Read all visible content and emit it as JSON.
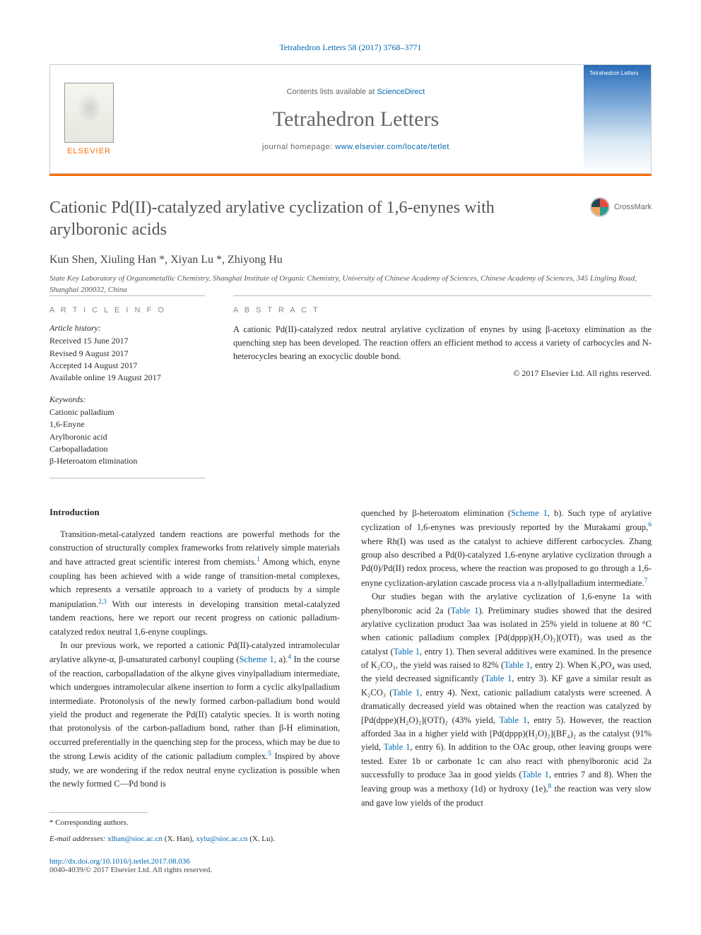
{
  "top_citation": "Tetrahedron Letters 58 (2017) 3768–3771",
  "header": {
    "contents_prefix": "Contents lists available at ",
    "contents_link": "ScienceDirect",
    "journal_name": "Tetrahedron Letters",
    "homepage_prefix": "journal homepage: ",
    "homepage_link": "www.elsevier.com/locate/tetlet",
    "elsevier_label": "ELSEVIER",
    "cover_title": "Tetrahedron Letters"
  },
  "crossmark_label": "CrossMark",
  "title": "Cationic Pd(II)-catalyzed arylative cyclization of 1,6-enynes with arylboronic acids",
  "authors_html": "Kun Shen, Xiuling Han *, Xiyan Lu *, Zhiyong Hu",
  "affiliation": "State Key Laboratory of Organometallic Chemistry, Shanghai Institute of Organic Chemistry, University of Chinese Academy of Sciences, Chinese Academy of Sciences, 345 Lingling Road, Shanghai 200032, China",
  "info": {
    "heading": "A R T I C L E   I N F O",
    "history_label": "Article history:",
    "received": "Received 15 June 2017",
    "revised": "Revised 9 August 2017",
    "accepted": "Accepted 14 August 2017",
    "online": "Available online 19 August 2017",
    "keywords_label": "Keywords:",
    "kw1": "Cationic palladium",
    "kw2": "1,6-Enyne",
    "kw3": "Arylboronic acid",
    "kw4": "Carbopalladation",
    "kw5": "β-Heteroatom elimination"
  },
  "abstract": {
    "heading": "A B S T R A C T",
    "text": "A cationic Pd(II)-catalyzed redox neutral arylative cyclization of enynes by using β-acetoxy elimination as the quenching step has been developed. The reaction offers an efficient method to access a variety of carbocycles and N-heterocycles bearing an exocyclic double bond.",
    "copyright": "© 2017 Elsevier Ltd. All rights reserved."
  },
  "intro_heading": "Introduction",
  "col1": {
    "p1a": "Transition-metal-catalyzed tandem reactions are powerful methods for the construction of structurally complex frameworks from relatively simple materials and have attracted great scientific interest from chemists.",
    "p1b": " Among which, enyne coupling has been achieved with a wide range of transition-metal complexes, which represents a versatile approach to a variety of products by a simple manipulation.",
    "p1c": " With our interests in developing transition metal-catalyzed tandem reactions, here we report our recent progress on cationic palladium-catalyzed redox neutral 1,6-enyne couplings.",
    "p2a": "In our previous work, we reported a cationic Pd(II)-catalyzed intramolecular arylative alkyne-α, β-unsaturated carbonyl coupling (",
    "p2b": ", a).",
    "p2c": " In the course of the reaction, carbopalladation of the alkyne gives vinylpalladium intermediate, which undergoes intramolecular alkene insertion to form a cyclic alkylpalladium intermediate. Protonolysis of the newly formed carbon-palladium bond would yield the product and regenerate the Pd(II) catalytic species. It is worth noting that protonolysis of the carbon-palladium bond, rather than β-H elimination, occurred preferentially in the quenching step for the process, which may be due to the strong Lewis acidity of the cationic palladium complex.",
    "p2d": " Inspired by above study, we are wondering if the redox neutral enyne cyclization is possible when the newly formed C—Pd bond is",
    "ref1": "1",
    "ref23": "2,3",
    "scheme1": "Scheme 1",
    "ref4": "4",
    "ref5": "5"
  },
  "col2": {
    "p1a": "quenched by β-heteroatom elimination (",
    "p1b": ", b). Such type of arylative cyclization of 1,6-enynes was previously reported by the Murakami group,",
    "p1c": " where Rh(I) was used as the catalyst to achieve different carbocycles. Zhang group also described a Pd(0)-catalyzed 1,6-enyne arylative cyclization through a Pd(0)/Pd(II) redox process, where the reaction was proposed to go through a 1,6-enyne cyclization-arylation cascade process via a π-allylpalladium intermediate.",
    "p2a": "Our studies began with the arylative cyclization of 1,6-enyne 1a with phenylboronic acid 2a (",
    "p2b": "). Preliminary studies showed that the desired arylative cyclization product 3aa was isolated in 25% yield in toluene at 80 °C when cationic palladium complex [Pd(dppp)(H₂O)₂](OTf)₂ was used as the catalyst (",
    "p2c": ", entry 1). Then several additives were examined. In the presence of K₂CO₃, the yield was raised to 82% (",
    "p2d": ", entry 2). When K₃PO₄ was used, the yield decreased significantly (",
    "p2e": ", entry 3). KF gave a similar result as K₂CO₃ (",
    "p2f": ", entry 4). Next, cationic palladium catalysts were screened. A dramatically decreased yield was obtained when the reaction was catalyzed by [Pd(dppe)(H₂O)₂](OTf)₂ (43% yield, ",
    "p2g": ", entry 5). However, the reaction afforded 3aa in a higher yield with [Pd(dppp)(H₂O)₂](BF₄)₂ as the catalyst (91% yield, ",
    "p2h": ", entry 6). In addition to the OAc group, other leaving groups were tested. Ester 1b or carbonate 1c can also react with phenylboronic acid 2a successfully to produce 3aa in good yields (",
    "p2i": ", entries 7 and 8). When the leaving group was a methoxy (1d) or hydroxy (1e),",
    "p2j": " the reaction was very slow and gave low yields of the product",
    "scheme1": "Scheme 1",
    "ref6": "6",
    "ref7": "7",
    "ref8": "8",
    "table1": "Table 1"
  },
  "footnote": {
    "star": "* Corresponding authors.",
    "email_label": "E-mail addresses: ",
    "email1": "xlhan@sioc.ac.cn",
    "email1_paren": " (X. Han), ",
    "email2": "xylu@sioc.ac.cn",
    "email2_paren": " (X. Lu)."
  },
  "doi": "http://dx.doi.org/10.1016/j.tetlet.2017.08.036",
  "issn": "0040-4039/© 2017 Elsevier Ltd. All rights reserved.",
  "colors": {
    "link": "#0068b3",
    "orange": "#ff6c00",
    "text": "#2a2a2a",
    "gray": "#666666"
  }
}
